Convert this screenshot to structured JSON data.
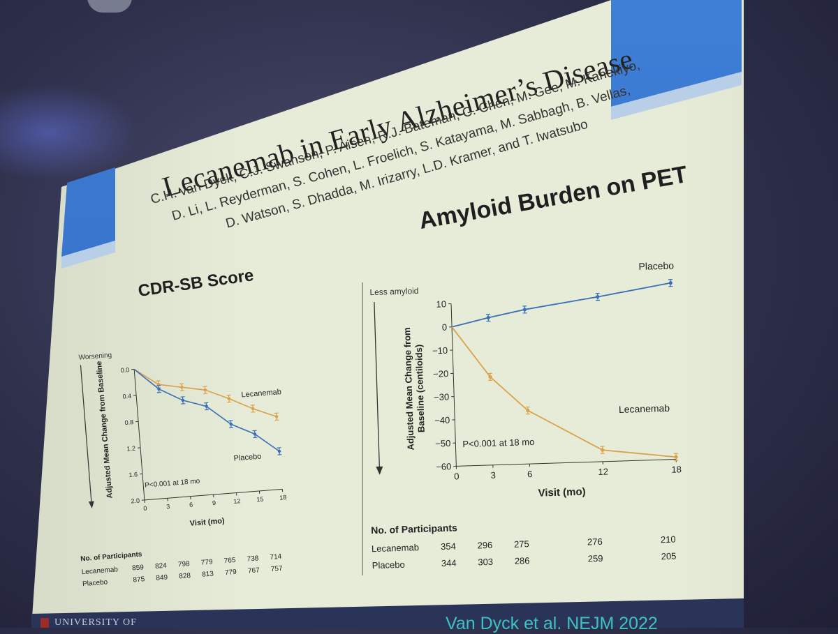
{
  "slide": {
    "title": "Lecanemab in Early Alzheimer’s Disease",
    "authors": [
      "C.H. van Dyck, C.J. Swanson, P. Aisen, R.J. Bateman, C. Chen, M. Gee, M. Kanekiyo,",
      "D. Li, L. Reyderman, S. Cohen, L. Froelich, S. Katayama, M. Sabbagh, B. Vellas,",
      "D. Watson, S. Dhadda, M. Irizarry, L.D. Kramer, and T. Iwatsubo"
    ],
    "footer_institution": "UNIVERSITY OF",
    "footer_reference": "Van Dyck et al. NEJM 2022",
    "colors": {
      "lecanemab": "#d9a24a",
      "placebo": "#3a6fb7",
      "slide_bg": "#e6ecd7",
      "accent_blue": "#2f68c2"
    }
  },
  "chart_data": [
    {
      "type": "line",
      "title": "CDR-SB Score",
      "direction_label": "Worsening",
      "ylabel": "Adjusted Mean Change from Baseline",
      "xlabel": "Visit (mo)",
      "y_inverted": true,
      "ylim": [
        0.0,
        2.0
      ],
      "y_ticks": [
        "0.0",
        "0.4",
        "0.8",
        "1.2",
        "1.6",
        "2.0"
      ],
      "x_ticks": [
        "0",
        "3",
        "6",
        "9",
        "12",
        "15",
        "18"
      ],
      "annotation": "P<0.001 at 18 mo",
      "x": [
        0,
        3,
        6,
        9,
        12,
        15,
        18
      ],
      "series": [
        {
          "name": "Lecanemab",
          "color": "#d9a24a",
          "values": [
            0.0,
            0.26,
            0.33,
            0.4,
            0.56,
            0.74,
            0.89
          ]
        },
        {
          "name": "Placebo",
          "color": "#3a6fb7",
          "values": [
            0.0,
            0.33,
            0.53,
            0.65,
            0.95,
            1.13,
            1.42
          ]
        }
      ],
      "participants": {
        "heading": "No. of Participants",
        "rows": [
          {
            "label": "Lecanemab",
            "values": [
              "859",
              "824",
              "798",
              "779",
              "765",
              "738",
              "714"
            ]
          },
          {
            "label": "Placebo",
            "values": [
              "875",
              "849",
              "828",
              "813",
              "779",
              "767",
              "757"
            ]
          }
        ]
      }
    },
    {
      "type": "line",
      "title": "Amyloid Burden on PET",
      "direction_label": "Less amyloid",
      "ylabel": "Adjusted Mean Change from Baseline (centiloids)",
      "xlabel": "Visit (mo)",
      "ylim": [
        -60,
        10
      ],
      "y_ticks": [
        "10",
        "0",
        "−10",
        "−20",
        "−30",
        "−40",
        "−50",
        "−60"
      ],
      "x_ticks": [
        "0",
        "3",
        "6",
        "12",
        "18"
      ],
      "annotation": "P<0.001 at 18 mo",
      "x": [
        0,
        3,
        6,
        12,
        18
      ],
      "series": [
        {
          "name": "Placebo",
          "color": "#3a6fb7",
          "values": [
            0,
            3.5,
            6.5,
            11,
            16
          ]
        },
        {
          "name": "Lecanemab",
          "color": "#d9a24a",
          "values": [
            0,
            -22,
            -37,
            -55,
            -59
          ]
        }
      ],
      "participants": {
        "heading": "No. of Participants",
        "rows": [
          {
            "label": "Lecanemab",
            "values": [
              "354",
              "296",
              "275",
              "276",
              "210"
            ]
          },
          {
            "label": "Placebo",
            "values": [
              "344",
              "303",
              "286",
              "259",
              "205"
            ]
          }
        ]
      }
    }
  ]
}
